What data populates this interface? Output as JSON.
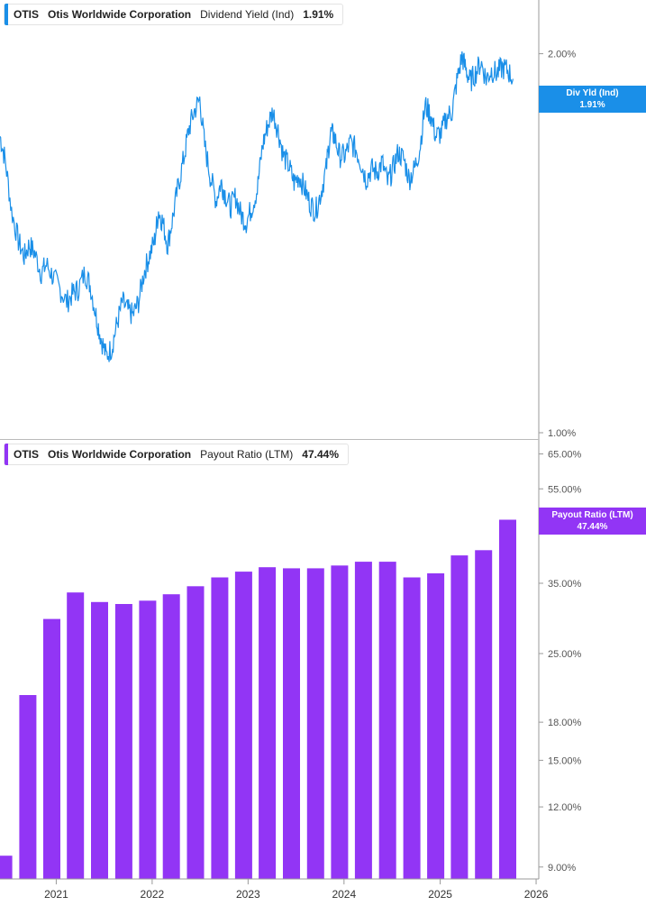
{
  "colors": {
    "yield": "#1a8fe8",
    "payout": "#9235f5",
    "axis": "#999999",
    "text": "#555555"
  },
  "top_legend": {
    "ticker": "OTIS",
    "company": "Otis Worldwide Corporation",
    "metric": "Dividend Yield (Ind)",
    "value": "1.91%"
  },
  "bottom_legend": {
    "ticker": "OTIS",
    "company": "Otis Worldwide Corporation",
    "metric": "Payout Ratio (LTM)",
    "value": "47.44%"
  },
  "top_flag": {
    "label": "Div Yld (Ind)",
    "value": "1.91%"
  },
  "bottom_flag": {
    "label": "Payout Ratio (LTM)",
    "value": "47.44%"
  },
  "chart_data": [
    {
      "type": "line",
      "series": [
        {
          "name": "Dividend Yield (Ind)",
          "color": "#1a8fe8",
          "x": [
            "2020-06-01",
            "2020-06-20",
            "2020-07-15",
            "2020-08-10",
            "2020-09-01",
            "2020-09-20",
            "2020-10-10",
            "2020-11-05",
            "2020-11-25",
            "2020-12-20",
            "2021-01-15",
            "2021-02-10",
            "2021-03-05",
            "2021-03-25",
            "2021-04-20",
            "2021-05-10",
            "2021-06-01",
            "2021-06-20",
            "2021-07-10",
            "2021-08-01",
            "2021-08-20",
            "2021-09-10",
            "2021-10-01",
            "2021-10-20",
            "2021-11-10",
            "2021-12-01",
            "2021-12-20",
            "2022-01-10",
            "2022-01-25",
            "2022-02-10",
            "2022-03-01",
            "2022-03-20",
            "2022-04-10",
            "2022-05-01",
            "2022-05-20",
            "2022-06-10",
            "2022-07-01",
            "2022-07-20",
            "2022-08-10",
            "2022-09-01",
            "2022-09-20",
            "2022-10-05",
            "2022-10-25",
            "2022-11-15",
            "2022-12-05",
            "2022-12-25",
            "2023-01-15",
            "2023-02-05",
            "2023-02-25",
            "2023-03-15",
            "2023-04-05",
            "2023-04-25",
            "2023-05-15",
            "2023-06-05",
            "2023-06-25",
            "2023-07-15",
            "2023-08-05",
            "2023-08-25",
            "2023-09-15",
            "2023-10-05",
            "2023-10-25",
            "2023-11-10",
            "2023-11-25",
            "2023-12-15",
            "2024-01-05",
            "2024-01-25",
            "2024-02-15",
            "2024-03-05",
            "2024-03-25",
            "2024-04-15",
            "2024-05-05",
            "2024-05-25",
            "2024-06-15",
            "2024-07-05",
            "2024-07-25",
            "2024-08-15",
            "2024-09-05",
            "2024-09-25",
            "2024-10-15",
            "2024-11-05",
            "2024-11-25",
            "2024-12-15",
            "2025-01-05",
            "2025-01-25",
            "2025-02-15",
            "2025-03-05",
            "2025-03-25",
            "2025-04-10",
            "2025-04-25",
            "2025-05-15",
            "2025-06-05",
            "2025-06-25",
            "2025-07-15",
            "2025-08-05",
            "2025-08-25",
            "2025-09-15",
            "2025-10-05"
          ],
          "y": [
            1.72,
            1.65,
            1.5,
            1.42,
            1.38,
            1.41,
            1.39,
            1.34,
            1.36,
            1.33,
            1.3,
            1.27,
            1.29,
            1.3,
            1.34,
            1.31,
            1.24,
            1.19,
            1.15,
            1.17,
            1.22,
            1.27,
            1.25,
            1.24,
            1.27,
            1.34,
            1.38,
            1.42,
            1.5,
            1.47,
            1.41,
            1.48,
            1.57,
            1.65,
            1.74,
            1.8,
            1.84,
            1.69,
            1.6,
            1.53,
            1.58,
            1.55,
            1.51,
            1.54,
            1.49,
            1.47,
            1.51,
            1.56,
            1.69,
            1.75,
            1.8,
            1.74,
            1.66,
            1.63,
            1.58,
            1.6,
            1.56,
            1.52,
            1.5,
            1.55,
            1.62,
            1.73,
            1.72,
            1.66,
            1.66,
            1.7,
            1.68,
            1.64,
            1.59,
            1.62,
            1.61,
            1.64,
            1.58,
            1.62,
            1.67,
            1.65,
            1.59,
            1.62,
            1.68,
            1.82,
            1.79,
            1.72,
            1.73,
            1.78,
            1.8,
            1.9,
            1.99,
            1.94,
            1.9,
            1.93,
            1.97,
            1.91,
            1.94,
            1.93,
            1.95,
            1.94,
            1.91
          ]
        }
      ],
      "y_ticks": [
        "2.00%",
        "1.00%"
      ],
      "ylim": [
        1.0,
        2.1
      ],
      "scale": "log",
      "grid": false
    },
    {
      "type": "bar",
      "series": [
        {
          "name": "Payout Ratio (LTM)",
          "color": "#9235f5",
          "categories": [
            "2020-06",
            "2020-09",
            "2020-12",
            "2021-03",
            "2021-06",
            "2021-09",
            "2021-12",
            "2022-03",
            "2022-06",
            "2022-09",
            "2022-12",
            "2023-03",
            "2023-06",
            "2023-09",
            "2023-12",
            "2024-03",
            "2024-06",
            "2024-09",
            "2024-12",
            "2025-03",
            "2025-06",
            "2025-09"
          ],
          "values": [
            9.5,
            20.5,
            29.5,
            33.5,
            32.0,
            31.7,
            32.2,
            33.2,
            34.5,
            36.0,
            37.0,
            37.8,
            37.6,
            37.6,
            38.1,
            38.8,
            38.8,
            36.0,
            36.7,
            40.0,
            41.0,
            47.44
          ]
        }
      ],
      "y_ticks": [
        "65.00%",
        "55.00%",
        "45.00%",
        "35.00%",
        "25.00%",
        "18.00%",
        "15.00%",
        "12.00%",
        "9.00%"
      ],
      "ylim": [
        8.5,
        66
      ],
      "scale": "log",
      "grid": false
    }
  ],
  "x_axis": {
    "ticks": [
      "2021",
      "2022",
      "2023",
      "2024",
      "2025",
      "2026"
    ]
  }
}
